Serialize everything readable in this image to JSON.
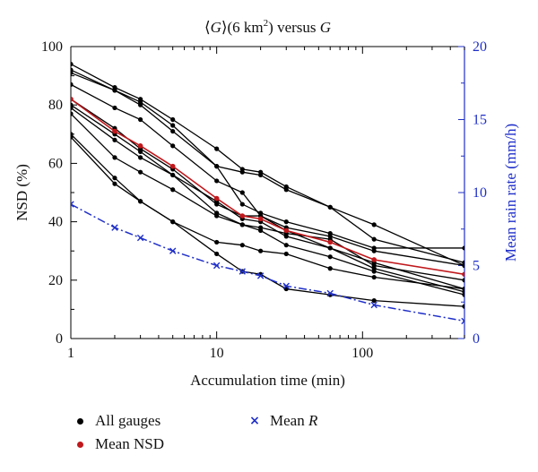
{
  "chart_data": {
    "type": "line",
    "title": "⟨G⟩(6 km²) versus G",
    "xlabel": "Accumulation time (min)",
    "ylabel": "NSD (%)",
    "y2label": "Mean rain rate (mm/h)",
    "xscale": "log",
    "xlim": [
      1,
      500
    ],
    "ylim": [
      0,
      100
    ],
    "y2lim": [
      0,
      20
    ],
    "x_ticks": [
      1,
      10,
      100
    ],
    "y_ticks": [
      0,
      20,
      40,
      60,
      80,
      100
    ],
    "y2_ticks": [
      0,
      5,
      10,
      15,
      20
    ],
    "x": [
      1,
      2,
      3,
      5,
      10,
      15,
      20,
      30,
      60,
      120,
      500
    ],
    "colors": {
      "gauges": "#000000",
      "mean_nsd": "#c0181c",
      "mean_r": "#1f2fc8",
      "right_axis": "#1f2fc8"
    },
    "gauge_series": [
      [
        94,
        86,
        82,
        75,
        65,
        58,
        57,
        52,
        45,
        39,
        25
      ],
      [
        92,
        85,
        80,
        71,
        59,
        57,
        56,
        51,
        45,
        34,
        26
      ],
      [
        91,
        85,
        81,
        73,
        59,
        46,
        43,
        40,
        36,
        31,
        31
      ],
      [
        87,
        79,
        75,
        66,
        54,
        50,
        42,
        38,
        35,
        30,
        25
      ],
      [
        82,
        72,
        65,
        58,
        46,
        42,
        42,
        37,
        31,
        26,
        17
      ],
      [
        80,
        70,
        64,
        56,
        47,
        41,
        40,
        35,
        31,
        24,
        16
      ],
      [
        79,
        68,
        62,
        56,
        43,
        39,
        38,
        36,
        34,
        25,
        20
      ],
      [
        77,
        62,
        57,
        51,
        42,
        39,
        37,
        32,
        28,
        23,
        15
      ],
      [
        70,
        55,
        47,
        40,
        33,
        32,
        30,
        29,
        24,
        21,
        17
      ],
      [
        69,
        53,
        47,
        40,
        29,
        23,
        22,
        17,
        15,
        13,
        11
      ]
    ],
    "mean_nsd": [
      82,
      71,
      66,
      59,
      48,
      42,
      41,
      37,
      33,
      27,
      22
    ],
    "mean_r_x": [
      1,
      2,
      3,
      5,
      10,
      15,
      20,
      30,
      60,
      120,
      500
    ],
    "mean_r": [
      9.2,
      7.6,
      6.9,
      6.0,
      5.0,
      4.6,
      4.3,
      3.6,
      3.1,
      2.3,
      1.2
    ],
    "legend": {
      "all_gauges": "All gauges",
      "mean_nsd": "Mean NSD",
      "mean_r_text": "Mean",
      "mean_r_italic": "R"
    }
  }
}
